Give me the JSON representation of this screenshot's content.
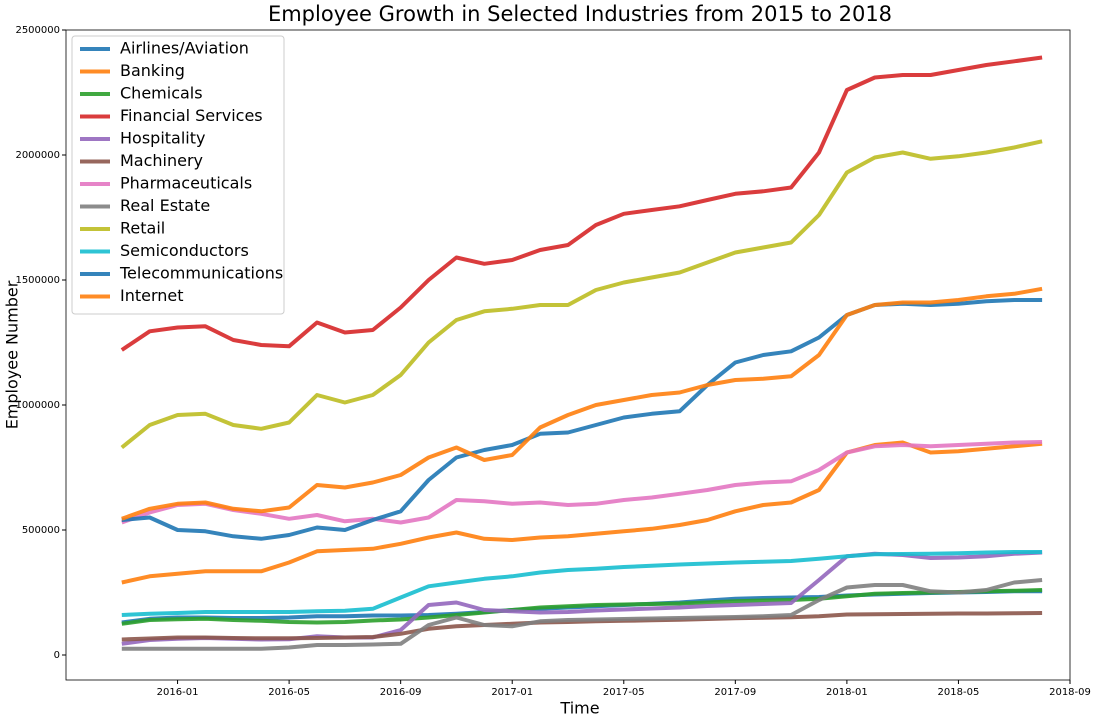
{
  "chart_data": {
    "type": "line",
    "title": "Employee Growth in Selected Industries from 2015 to 2018",
    "xlabel": "Time",
    "ylabel": "Employee Number",
    "x": [
      "2015-11",
      "2015-12",
      "2016-01",
      "2016-02",
      "2016-03",
      "2016-04",
      "2016-05",
      "2016-06",
      "2016-07",
      "2016-08",
      "2016-09",
      "2016-10",
      "2016-11",
      "2016-12",
      "2017-01",
      "2017-02",
      "2017-03",
      "2017-04",
      "2017-05",
      "2017-06",
      "2017-07",
      "2017-08",
      "2017-09",
      "2017-10",
      "2017-11",
      "2017-12",
      "2018-01",
      "2018-02",
      "2018-03",
      "2018-04",
      "2018-05",
      "2018-06",
      "2018-07",
      "2018-08"
    ],
    "xlim": [
      "2015-09",
      "2018-09"
    ],
    "xticks": [
      "2016-01",
      "2016-05",
      "2016-09",
      "2017-01",
      "2017-05",
      "2017-09",
      "2018-01",
      "2018-05",
      "2018-09"
    ],
    "ylim": [
      -100000,
      2500000
    ],
    "yticks": [
      0,
      500000,
      1000000,
      1500000,
      2000000,
      2500000
    ],
    "legend": "upper left",
    "series": [
      {
        "name": "Airlines/Aviation",
        "color": "#1f77b4",
        "values": [
          130000,
          145000,
          150000,
          150000,
          148000,
          148000,
          150000,
          155000,
          155000,
          158000,
          158000,
          160000,
          165000,
          172000,
          180000,
          185000,
          190000,
          195000,
          200000,
          205000,
          210000,
          218000,
          225000,
          228000,
          230000,
          232000,
          238000,
          242000,
          245000,
          248000,
          250000,
          252000,
          255000,
          255000
        ]
      },
      {
        "name": "Banking",
        "color": "#ff7f0e",
        "values": [
          290000,
          315000,
          325000,
          335000,
          335000,
          335000,
          370000,
          415000,
          420000,
          425000,
          445000,
          470000,
          490000,
          465000,
          460000,
          470000,
          475000,
          485000,
          495000,
          505000,
          520000,
          540000,
          575000,
          600000,
          610000,
          660000,
          810000,
          840000,
          850000,
          810000,
          815000,
          825000,
          835000,
          845000
        ]
      },
      {
        "name": "Chemicals",
        "color": "#2ca02c",
        "values": [
          125000,
          140000,
          143000,
          145000,
          140000,
          137000,
          132000,
          130000,
          132000,
          138000,
          142000,
          150000,
          160000,
          170000,
          180000,
          190000,
          195000,
          200000,
          202000,
          204000,
          206000,
          210000,
          215000,
          218000,
          220000,
          225000,
          235000,
          245000,
          248000,
          250000,
          252000,
          255000,
          257000,
          260000
        ]
      },
      {
        "name": "Financial Services",
        "color": "#d62728",
        "values": [
          1220000,
          1295000,
          1310000,
          1315000,
          1260000,
          1240000,
          1235000,
          1330000,
          1290000,
          1300000,
          1390000,
          1500000,
          1590000,
          1565000,
          1580000,
          1620000,
          1640000,
          1720000,
          1765000,
          1780000,
          1795000,
          1820000,
          1845000,
          1855000,
          1870000,
          2010000,
          2260000,
          2310000,
          2320000,
          2320000,
          2340000,
          2360000,
          2375000,
          2390000
        ]
      },
      {
        "name": "Hospitality",
        "color": "#9467bd",
        "values": [
          45000,
          60000,
          65000,
          68000,
          65000,
          62000,
          63000,
          75000,
          70000,
          70000,
          100000,
          200000,
          210000,
          180000,
          175000,
          170000,
          172000,
          178000,
          182000,
          186000,
          190000,
          196000,
          200000,
          204000,
          208000,
          300000,
          395000,
          405000,
          400000,
          388000,
          390000,
          395000,
          405000,
          410000
        ]
      },
      {
        "name": "Machinery",
        "color": "#8c564b",
        "values": [
          62000,
          66000,
          70000,
          70000,
          68000,
          67000,
          67000,
          68000,
          70000,
          72000,
          85000,
          105000,
          115000,
          120000,
          125000,
          130000,
          132000,
          135000,
          137000,
          139000,
          141000,
          144000,
          147000,
          149000,
          151000,
          155000,
          162000,
          163000,
          164000,
          165000,
          166000,
          166000,
          167000,
          168000
        ]
      },
      {
        "name": "Pharmaceuticals",
        "color": "#e377c2",
        "values": [
          530000,
          570000,
          600000,
          605000,
          580000,
          565000,
          545000,
          560000,
          535000,
          545000,
          530000,
          550000,
          620000,
          615000,
          605000,
          610000,
          600000,
          605000,
          620000,
          630000,
          645000,
          660000,
          680000,
          690000,
          695000,
          740000,
          810000,
          835000,
          840000,
          835000,
          840000,
          845000,
          850000,
          852000
        ]
      },
      {
        "name": "Real Estate",
        "color": "#7f7f7f",
        "values": [
          25000,
          25000,
          25000,
          25000,
          25000,
          25000,
          30000,
          40000,
          40000,
          42000,
          45000,
          120000,
          150000,
          120000,
          115000,
          135000,
          140000,
          142000,
          144000,
          146000,
          148000,
          150000,
          152000,
          155000,
          160000,
          220000,
          270000,
          280000,
          280000,
          255000,
          250000,
          260000,
          290000,
          300000
        ]
      },
      {
        "name": "Retail",
        "color": "#bcbd22",
        "values": [
          830000,
          920000,
          960000,
          965000,
          920000,
          905000,
          930000,
          1040000,
          1010000,
          1040000,
          1120000,
          1250000,
          1340000,
          1375000,
          1385000,
          1400000,
          1400000,
          1460000,
          1490000,
          1510000,
          1530000,
          1570000,
          1610000,
          1630000,
          1650000,
          1760000,
          1930000,
          1990000,
          2010000,
          1985000,
          1995000,
          2010000,
          2030000,
          2055000
        ]
      },
      {
        "name": "Semiconductors",
        "color": "#17becf",
        "values": [
          160000,
          165000,
          168000,
          172000,
          172000,
          172000,
          172000,
          175000,
          177000,
          185000,
          230000,
          275000,
          290000,
          305000,
          315000,
          330000,
          340000,
          345000,
          352000,
          357000,
          362000,
          366000,
          370000,
          373000,
          376000,
          385000,
          395000,
          403000,
          404000,
          405000,
          407000,
          410000,
          412000,
          412000
        ]
      },
      {
        "name": "Telecommunications",
        "color": "#1f77b4",
        "values": [
          540000,
          550000,
          500000,
          495000,
          475000,
          465000,
          480000,
          510000,
          500000,
          540000,
          575000,
          700000,
          790000,
          820000,
          840000,
          885000,
          890000,
          920000,
          950000,
          965000,
          975000,
          1080000,
          1170000,
          1200000,
          1215000,
          1270000,
          1360000,
          1400000,
          1405000,
          1400000,
          1405000,
          1415000,
          1420000,
          1420000
        ]
      },
      {
        "name": "Internet",
        "color": "#ff7f0e",
        "values": [
          545000,
          585000,
          605000,
          610000,
          585000,
          575000,
          590000,
          680000,
          670000,
          690000,
          720000,
          790000,
          830000,
          780000,
          800000,
          910000,
          960000,
          1000000,
          1020000,
          1040000,
          1050000,
          1080000,
          1100000,
          1105000,
          1115000,
          1200000,
          1360000,
          1400000,
          1410000,
          1410000,
          1420000,
          1435000,
          1445000,
          1465000
        ]
      }
    ]
  }
}
